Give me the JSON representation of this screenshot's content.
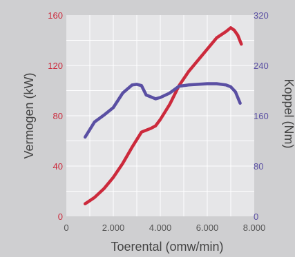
{
  "chart_data": {
    "type": "line",
    "title": "",
    "xlabel": "Toerental (omw/min)",
    "ylabel_left": "Vermogen (kW)",
    "ylabel_right": "Koppel (Nm)",
    "xlim": [
      0,
      8000
    ],
    "ylim_left": [
      0,
      160
    ],
    "ylim_right": [
      0,
      320
    ],
    "x_ticks": [
      0,
      2000,
      4000,
      6000,
      8000
    ],
    "x_tick_labels": [
      "0",
      "2.000",
      "4.000",
      "6.000",
      "8.000"
    ],
    "y_left_ticks": [
      0,
      40,
      80,
      120,
      160
    ],
    "y_left_tick_labels": [
      "0",
      "40",
      "80",
      "120",
      "160"
    ],
    "y_right_ticks": [
      0,
      80,
      160,
      240,
      320
    ],
    "y_right_tick_labels": [
      "0",
      "80",
      "160",
      "240",
      "320"
    ],
    "grid": true,
    "colors": {
      "background": "#cfcfd1",
      "plot_bg": "#e6e6e8",
      "grid": "#ffffff",
      "left_axis": "#cc2a3c",
      "right_axis": "#5a4fa3"
    },
    "series": [
      {
        "axis": "left",
        "color": "#cc2a3c",
        "x": [
          800,
          1200,
          1600,
          2000,
          2400,
          2800,
          3200,
          3600,
          3800,
          4000,
          4400,
          4800,
          5200,
          5600,
          6000,
          6400,
          6800,
          7000,
          7150,
          7300,
          7450
        ],
        "y": [
          10,
          15,
          22,
          31,
          42,
          55,
          67,
          70,
          72,
          77,
          89,
          104,
          115,
          124,
          133,
          142,
          147,
          150,
          148,
          144,
          137
        ]
      },
      {
        "axis": "right",
        "color": "#5a4fa3",
        "x": [
          800,
          1200,
          1600,
          2000,
          2400,
          2800,
          3000,
          3200,
          3400,
          3600,
          3800,
          4000,
          4400,
          4800,
          5200,
          5600,
          6000,
          6400,
          6800,
          7000,
          7200,
          7400
        ],
        "y": [
          126,
          150,
          161,
          173,
          196,
          209,
          210,
          208,
          193,
          190,
          187,
          189,
          196,
          207,
          209,
          210,
          211,
          211,
          209,
          206,
          198,
          180
        ]
      }
    ]
  }
}
